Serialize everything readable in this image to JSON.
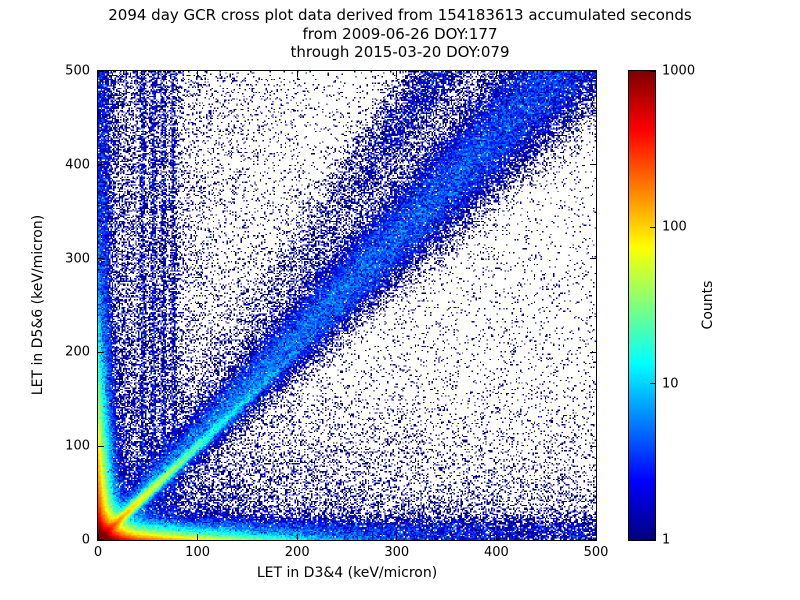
{
  "chart_data": {
    "type": "heatmap",
    "title": "2094 day GCR cross plot data derived from 154183613 accumulated seconds",
    "subtitle1": "from 2009-06-26 DOY:177",
    "subtitle2": "through 2015-03-20 DOY:079",
    "xlabel": "LET in D3&4 (keV/micron)",
    "ylabel": "LET in D5&6 (keV/micron)",
    "xlim": [
      0,
      500
    ],
    "ylim": [
      0,
      500
    ],
    "xticks": [
      0,
      100,
      200,
      300,
      400,
      500
    ],
    "yticks": [
      0,
      100,
      200,
      300,
      400,
      500
    ],
    "grid": false,
    "colorbar": {
      "label": "Counts",
      "scale": "log",
      "min": 1,
      "max": 1000,
      "ticks": [
        1,
        10,
        100,
        1000
      ],
      "colormap": "jet",
      "position": "right"
    },
    "bins": 360,
    "seed": 42,
    "density_components": [
      {
        "type": "background",
        "amp": 0.055
      },
      {
        "type": "core",
        "amp": 2600,
        "decay": 9
      },
      {
        "type": "armx",
        "amp": 550,
        "width": 4.5,
        "decay": 55
      },
      {
        "type": "army",
        "amp": 550,
        "width": 4.5,
        "decay": 55
      },
      {
        "type": "diagstreak",
        "amp": 200,
        "width": 3.5,
        "decay": 42
      },
      {
        "type": "diagband",
        "amp": 6.5,
        "slope": 1.08,
        "width0": 5,
        "grow": 0.045,
        "decay": 800
      },
      {
        "type": "hband",
        "amp": 4,
        "y0": 10,
        "width": 8,
        "decay": 400
      },
      {
        "type": "vband",
        "amp": 3.5,
        "x0": 4,
        "width": 6,
        "decay": 500
      },
      {
        "type": "leftdiffuse",
        "amp": 0.8,
        "decay": 60
      },
      {
        "type": "bottomdiffuse",
        "amp": 0.6,
        "decay": 45
      },
      {
        "type": "lowdiffuse",
        "amp": 1.4,
        "xdecay": 160,
        "ydecay": 80
      },
      {
        "type": "vstreaks",
        "xs": [
          45,
          56,
          66,
          76
        ],
        "amp": 1.0,
        "width": 2
      },
      {
        "type": "fan",
        "amp": 1.8,
        "slope": 1.45,
        "width": 28,
        "topdecay": 160
      }
    ]
  }
}
